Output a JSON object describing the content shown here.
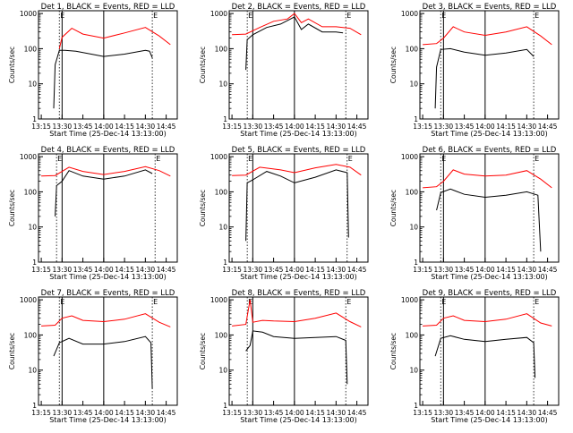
{
  "figure": {
    "xlabel": "Start Time (25-Dec-14 13:13:00)",
    "ylabel": "Counts/sec"
  },
  "chart_data": [
    {
      "type": "line",
      "title": "Det 1, BLACK = Events, RED = LLD",
      "xlabel": "Start Time (25-Dec-14 13:13:00)",
      "ylabel": "Counts/sec",
      "x_ticks": [
        "13:15",
        "13:30",
        "13:45",
        "14:00",
        "14:15",
        "14:30",
        "14:45"
      ],
      "y_ticks": [
        "1",
        "10",
        "100",
        "1000"
      ],
      "y_scale": "log",
      "ylim": [
        1,
        1200
      ],
      "markers": [
        {
          "label": "E",
          "time": "13:28"
        },
        {
          "label": "E",
          "time": "14:35"
        }
      ],
      "series": [
        {
          "color": "#ff0000",
          "points": [
            [
              "13:28",
              100
            ],
            [
              "13:30",
              210
            ],
            [
              "13:37",
              380
            ],
            [
              "13:45",
              260
            ],
            [
              "14:00",
              200
            ],
            [
              "14:15",
              280
            ],
            [
              "14:30",
              400
            ],
            [
              "14:40",
              230
            ],
            [
              "14:48",
              130
            ]
          ]
        },
        {
          "color": "#000000",
          "points": [
            [
              "13:24",
              2
            ],
            [
              "13:25",
              35
            ],
            [
              "13:28",
              90
            ],
            [
              "13:32",
              90
            ],
            [
              "13:40",
              85
            ],
            [
              "14:00",
              60
            ],
            [
              "14:15",
              70
            ],
            [
              "14:30",
              90
            ],
            [
              "14:33",
              85
            ],
            [
              "14:35",
              55
            ]
          ]
        }
      ]
    },
    {
      "type": "line",
      "title": "Det 2, BLACK = Events, RED = LLD",
      "xlabel": "Start Time (25-Dec-14 13:13:00)",
      "ylabel": "Counts/sec",
      "x_ticks": [
        "13:15",
        "13:30",
        "13:45",
        "14:00",
        "14:15",
        "14:30",
        "14:45"
      ],
      "y_ticks": [
        "1",
        "10",
        "100",
        "1000"
      ],
      "y_scale": "log",
      "ylim": [
        1,
        1200
      ],
      "markers": [
        {
          "label": "E",
          "time": "13:26"
        },
        {
          "label": "E",
          "time": "14:37"
        }
      ],
      "series": [
        {
          "color": "#ff0000",
          "points": [
            [
              "13:15",
              250
            ],
            [
              "13:25",
              260
            ],
            [
              "13:35",
              400
            ],
            [
              "13:45",
              600
            ],
            [
              "13:55",
              700
            ],
            [
              "14:00",
              1000
            ],
            [
              "14:05",
              550
            ],
            [
              "14:10",
              700
            ],
            [
              "14:20",
              420
            ],
            [
              "14:30",
              420
            ],
            [
              "14:40",
              380
            ],
            [
              "14:48",
              250
            ]
          ]
        },
        {
          "color": "#000000",
          "points": [
            [
              "13:25",
              25
            ],
            [
              "13:26",
              180
            ],
            [
              "13:30",
              250
            ],
            [
              "13:40",
              400
            ],
            [
              "13:50",
              500
            ],
            [
              "14:00",
              800
            ],
            [
              "14:05",
              350
            ],
            [
              "14:10",
              500
            ],
            [
              "14:20",
              300
            ],
            [
              "14:30",
              300
            ],
            [
              "14:35",
              280
            ]
          ]
        }
      ]
    },
    {
      "type": "line",
      "title": "Det 3, BLACK = Events, RED = LLD",
      "xlabel": "Start Time (25-Dec-14 13:13:00)",
      "ylabel": "Counts/sec",
      "x_ticks": [
        "13:15",
        "13:30",
        "13:45",
        "14:00",
        "14:15",
        "14:30",
        "14:45"
      ],
      "y_ticks": [
        "1",
        "10",
        "100",
        "1000"
      ],
      "y_scale": "log",
      "ylim": [
        1,
        1200
      ],
      "markers": [
        {
          "label": "E",
          "time": "13:28"
        },
        {
          "label": "E",
          "time": "14:35"
        }
      ],
      "series": [
        {
          "color": "#ff0000",
          "points": [
            [
              "13:15",
              130
            ],
            [
              "13:25",
              140
            ],
            [
              "13:30",
              200
            ],
            [
              "13:37",
              420
            ],
            [
              "13:45",
              300
            ],
            [
              "14:00",
              240
            ],
            [
              "14:15",
              300
            ],
            [
              "14:30",
              420
            ],
            [
              "14:40",
              230
            ],
            [
              "14:48",
              130
            ]
          ]
        },
        {
          "color": "#000000",
          "points": [
            [
              "13:24",
              2
            ],
            [
              "13:25",
              30
            ],
            [
              "13:28",
              95
            ],
            [
              "13:35",
              100
            ],
            [
              "13:45",
              80
            ],
            [
              "14:00",
              65
            ],
            [
              "14:15",
              75
            ],
            [
              "14:30",
              95
            ],
            [
              "14:35",
              60
            ]
          ]
        }
      ]
    },
    {
      "type": "line",
      "title": "Det 4, BLACK = Events, RED = LLD",
      "xlabel": "Start Time (25-Dec-14 13:13:00)",
      "ylabel": "Counts/sec",
      "x_ticks": [
        "13:15",
        "13:30",
        "13:45",
        "14:00",
        "14:15",
        "14:30",
        "14:45"
      ],
      "y_ticks": [
        "1",
        "10",
        "100",
        "1000"
      ],
      "y_scale": "log",
      "ylim": [
        1,
        1200
      ],
      "markers": [
        {
          "label": "E",
          "time": "13:26"
        },
        {
          "label": "E",
          "time": "14:37"
        }
      ],
      "series": [
        {
          "color": "#ff0000",
          "points": [
            [
              "13:15",
              280
            ],
            [
              "13:25",
              290
            ],
            [
              "13:35",
              500
            ],
            [
              "13:45",
              380
            ],
            [
              "14:00",
              310
            ],
            [
              "14:15",
              380
            ],
            [
              "14:30",
              520
            ],
            [
              "14:40",
              400
            ],
            [
              "14:48",
              280
            ]
          ]
        },
        {
          "color": "#000000",
          "points": [
            [
              "13:25",
              20
            ],
            [
              "13:26",
              150
            ],
            [
              "13:30",
              200
            ],
            [
              "13:35",
              400
            ],
            [
              "13:45",
              280
            ],
            [
              "14:00",
              230
            ],
            [
              "14:15",
              280
            ],
            [
              "14:30",
              420
            ],
            [
              "14:35",
              330
            ]
          ]
        }
      ]
    },
    {
      "type": "line",
      "title": "Det 5, BLACK = Events, RED = LLD",
      "xlabel": "Start Time (25-Dec-14 13:13:00)",
      "ylabel": "Counts/sec",
      "x_ticks": [
        "13:15",
        "13:30",
        "13:45",
        "14:00",
        "14:15",
        "14:30",
        "14:45"
      ],
      "y_ticks": [
        "1",
        "10",
        "100",
        "1000"
      ],
      "y_scale": "log",
      "ylim": [
        1,
        1200
      ],
      "markers": [
        {
          "label": "E",
          "time": "13:26"
        },
        {
          "label": "E",
          "time": "14:38"
        }
      ],
      "series": [
        {
          "color": "#ff0000",
          "points": [
            [
              "13:15",
              290
            ],
            [
              "13:25",
              300
            ],
            [
              "13:35",
              500
            ],
            [
              "13:50",
              420
            ],
            [
              "14:00",
              350
            ],
            [
              "14:15",
              480
            ],
            [
              "14:30",
              600
            ],
            [
              "14:40",
              500
            ],
            [
              "14:48",
              300
            ]
          ]
        },
        {
          "color": "#000000",
          "points": [
            [
              "13:25",
              4
            ],
            [
              "13:26",
              180
            ],
            [
              "13:30",
              220
            ],
            [
              "13:40",
              380
            ],
            [
              "13:50",
              280
            ],
            [
              "14:00",
              180
            ],
            [
              "14:15",
              260
            ],
            [
              "14:30",
              420
            ],
            [
              "14:38",
              350
            ],
            [
              "14:39",
              5
            ]
          ]
        }
      ]
    },
    {
      "type": "line",
      "title": "Det 6, BLACK = Events, RED = LLD",
      "xlabel": "Start Time (25-Dec-14 13:13:00)",
      "ylabel": "Counts/sec",
      "x_ticks": [
        "13:15",
        "13:30",
        "13:45",
        "14:00",
        "14:15",
        "14:30",
        "14:45"
      ],
      "y_ticks": [
        "1",
        "10",
        "100",
        "1000"
      ],
      "y_scale": "log",
      "ylim": [
        1,
        1200
      ],
      "markers": [
        {
          "label": "E",
          "time": "13:28"
        },
        {
          "label": "E",
          "time": "14:35"
        }
      ],
      "series": [
        {
          "color": "#ff0000",
          "points": [
            [
              "13:15",
              130
            ],
            [
              "13:25",
              140
            ],
            [
              "13:30",
              200
            ],
            [
              "13:37",
              420
            ],
            [
              "13:45",
              320
            ],
            [
              "14:00",
              280
            ],
            [
              "14:15",
              300
            ],
            [
              "14:30",
              400
            ],
            [
              "14:40",
              230
            ],
            [
              "14:48",
              130
            ]
          ]
        },
        {
          "color": "#000000",
          "points": [
            [
              "13:25",
              30
            ],
            [
              "13:28",
              95
            ],
            [
              "13:35",
              120
            ],
            [
              "13:45",
              85
            ],
            [
              "14:00",
              70
            ],
            [
              "14:15",
              80
            ],
            [
              "14:30",
              100
            ],
            [
              "14:38",
              80
            ],
            [
              "14:40",
              2
            ]
          ]
        }
      ]
    },
    {
      "type": "line",
      "title": "Det 7, BLACK = Events, RED = LLD",
      "xlabel": "Start Time (25-Dec-14 13:13:00)",
      "ylabel": "Counts/sec",
      "x_ticks": [
        "13:15",
        "13:30",
        "13:45",
        "14:00",
        "14:15",
        "14:30",
        "14:45"
      ],
      "y_ticks": [
        "1",
        "10",
        "100",
        "1000"
      ],
      "y_scale": "log",
      "ylim": [
        1,
        1200
      ],
      "markers": [
        {
          "label": "E",
          "time": "13:28"
        },
        {
          "label": "E",
          "time": "14:35"
        }
      ],
      "series": [
        {
          "color": "#ff0000",
          "points": [
            [
              "13:15",
              180
            ],
            [
              "13:25",
              190
            ],
            [
              "13:30",
              300
            ],
            [
              "13:37",
              350
            ],
            [
              "13:45",
              260
            ],
            [
              "14:00",
              240
            ],
            [
              "14:15",
              280
            ],
            [
              "14:30",
              400
            ],
            [
              "14:40",
              230
            ],
            [
              "14:48",
              170
            ]
          ]
        },
        {
          "color": "#000000",
          "points": [
            [
              "13:24",
              25
            ],
            [
              "13:28",
              60
            ],
            [
              "13:35",
              80
            ],
            [
              "13:45",
              55
            ],
            [
              "14:00",
              55
            ],
            [
              "14:15",
              65
            ],
            [
              "14:30",
              90
            ],
            [
              "14:34",
              60
            ],
            [
              "14:35",
              3
            ]
          ]
        }
      ]
    },
    {
      "type": "line",
      "title": "Det 8, BLACK = Events, RED = LLD",
      "xlabel": "Start Time (25-Dec-14 13:13:00)",
      "ylabel": "Counts/sec",
      "x_ticks": [
        "13:15",
        "13:30",
        "13:45",
        "14:00",
        "14:15",
        "14:30",
        "14:45"
      ],
      "y_ticks": [
        "1",
        "10",
        "100",
        "1000"
      ],
      "y_scale": "log",
      "ylim": [
        1,
        1200
      ],
      "markers": [
        {
          "label": "E",
          "time": "13:26"
        },
        {
          "label": "E",
          "time": "14:37"
        }
      ],
      "series": [
        {
          "color": "#ff0000",
          "points": [
            [
              "13:15",
              180
            ],
            [
              "13:25",
              200
            ],
            [
              "13:28",
              1000
            ],
            [
              "13:30",
              230
            ],
            [
              "13:37",
              260
            ],
            [
              "13:45",
              250
            ],
            [
              "14:00",
              240
            ],
            [
              "14:15",
              300
            ],
            [
              "14:30",
              420
            ],
            [
              "14:40",
              240
            ],
            [
              "14:48",
              170
            ]
          ]
        },
        {
          "color": "#000000",
          "points": [
            [
              "13:25",
              35
            ],
            [
              "13:28",
              50
            ],
            [
              "13:30",
              130
            ],
            [
              "13:37",
              120
            ],
            [
              "13:45",
              90
            ],
            [
              "14:00",
              80
            ],
            [
              "14:15",
              85
            ],
            [
              "14:30",
              90
            ],
            [
              "14:37",
              70
            ],
            [
              "14:38",
              4
            ]
          ]
        }
      ]
    },
    {
      "type": "line",
      "title": "Det 9, BLACK = Events, RED = LLD",
      "xlabel": "Start Time (25-Dec-14 13:13:00)",
      "ylabel": "Counts/sec",
      "x_ticks": [
        "13:15",
        "13:30",
        "13:45",
        "14:00",
        "14:15",
        "14:30",
        "14:45"
      ],
      "y_ticks": [
        "1",
        "10",
        "100",
        "1000"
      ],
      "y_scale": "log",
      "ylim": [
        1,
        1200
      ],
      "markers": [
        {
          "label": "E",
          "time": "13:28"
        },
        {
          "label": "E",
          "time": "14:35"
        }
      ],
      "series": [
        {
          "color": "#ff0000",
          "points": [
            [
              "13:15",
              180
            ],
            [
              "13:25",
              190
            ],
            [
              "13:30",
              300
            ],
            [
              "13:37",
              350
            ],
            [
              "13:45",
              260
            ],
            [
              "14:00",
              240
            ],
            [
              "14:15",
              280
            ],
            [
              "14:30",
              400
            ],
            [
              "14:40",
              220
            ],
            [
              "14:48",
              180
            ]
          ]
        },
        {
          "color": "#000000",
          "points": [
            [
              "13:24",
              25
            ],
            [
              "13:28",
              80
            ],
            [
              "13:35",
              95
            ],
            [
              "13:45",
              75
            ],
            [
              "14:00",
              65
            ],
            [
              "14:15",
              75
            ],
            [
              "14:30",
              85
            ],
            [
              "14:35",
              60
            ],
            [
              "14:36",
              6
            ]
          ]
        }
      ]
    }
  ]
}
